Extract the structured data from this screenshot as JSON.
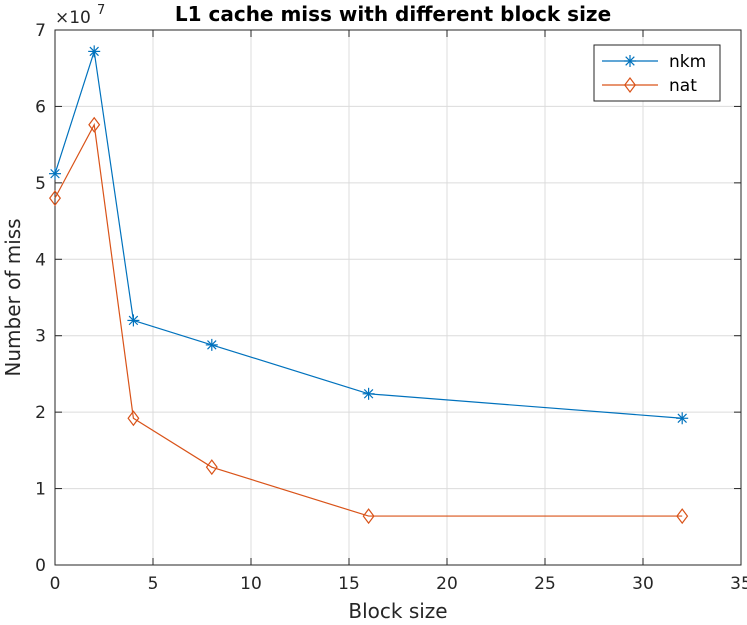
{
  "chart_data": {
    "type": "line",
    "title": "L1 cache miss with different block size",
    "xlabel": "Block size",
    "ylabel": "Number of miss",
    "xlim": [
      0,
      35
    ],
    "ylim": [
      0,
      7
    ],
    "x_ticks": [
      0,
      5,
      10,
      15,
      20,
      25,
      30,
      35
    ],
    "y_ticks": [
      0,
      1,
      2,
      3,
      4,
      5,
      6,
      7
    ],
    "y_exponent_base": "×10",
    "y_exponent_power": "7",
    "grid": true,
    "legend_position": "top-right",
    "series": [
      {
        "name": "nkm",
        "marker": "asterisk",
        "color": "#0072BD",
        "x": [
          0,
          2,
          4,
          8,
          16,
          32
        ],
        "y": [
          5.12,
          6.72,
          3.2,
          2.88,
          2.24,
          1.92
        ]
      },
      {
        "name": "nat",
        "marker": "diamond",
        "color": "#D95319",
        "x": [
          0,
          2,
          4,
          8,
          16,
          32
        ],
        "y": [
          4.8,
          5.76,
          1.92,
          1.28,
          0.64,
          0.64
        ]
      }
    ]
  }
}
